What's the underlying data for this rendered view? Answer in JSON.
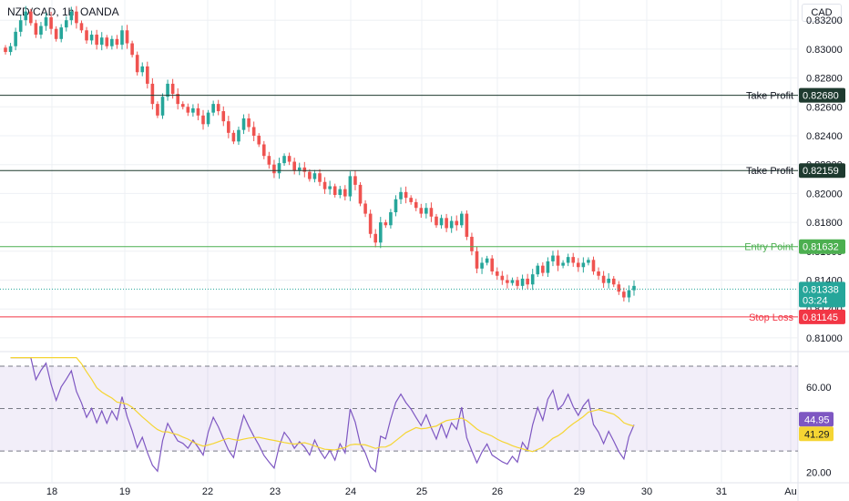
{
  "header": {
    "symbol": "NZD/CAD, 1h, OANDA",
    "currency": "CAD"
  },
  "colors": {
    "up": "#26a69a",
    "down": "#ef5350",
    "take_profit": "#1e3a2f",
    "entry": "#4caf50",
    "stop": "#f23645",
    "rsi": "#7e57c2",
    "rsi_ma": "#f5d533",
    "last_price": "#26a69a"
  },
  "price_scale": {
    "ticks": [
      "0.83200",
      "0.83000",
      "0.82800",
      "0.82600",
      "0.82400",
      "0.82200",
      "0.82000",
      "0.81800",
      "0.81600",
      "0.81400",
      "0.81200",
      "0.81000"
    ]
  },
  "rsi_scale": {
    "ticks": [
      "60.00",
      "20.00"
    ]
  },
  "time_axis": {
    "labels": [
      "18",
      "19",
      "22",
      "23",
      "24",
      "25",
      "26",
      "29",
      "30",
      "31",
      "Au"
    ]
  },
  "levels": [
    {
      "label": "Take Profit",
      "value": "0.82680",
      "kind": "take_profit"
    },
    {
      "label": "Take Profit",
      "value": "0.82159",
      "kind": "take_profit"
    },
    {
      "label": "Entry Point",
      "value": "0.81632",
      "kind": "entry"
    },
    {
      "label": "Stop Loss",
      "value": "0.81145",
      "kind": "stop"
    }
  ],
  "last_price": {
    "value": "0.81338",
    "countdown": "03:24"
  },
  "rsi_tags": {
    "rsi": "44.95",
    "ma": "41.29"
  },
  "chart_data": [
    {
      "type": "candlestick",
      "title": "NZD/CAD, 1h, OANDA",
      "ylim": [
        0.8093,
        0.8334
      ],
      "x_tick_labels": [
        "18",
        "19",
        "22",
        "23",
        "24",
        "25",
        "26",
        "29",
        "30",
        "31",
        "Au"
      ],
      "close": [
        0.8298,
        0.8302,
        0.8312,
        0.832,
        0.8326,
        0.8318,
        0.831,
        0.8316,
        0.8322,
        0.8314,
        0.8307,
        0.8315,
        0.832,
        0.8326,
        0.8318,
        0.8313,
        0.8306,
        0.831,
        0.8303,
        0.8308,
        0.8302,
        0.8307,
        0.8303,
        0.8313,
        0.8304,
        0.8296,
        0.8284,
        0.8288,
        0.8276,
        0.8262,
        0.8254,
        0.8267,
        0.8276,
        0.8269,
        0.8262,
        0.826,
        0.8256,
        0.8259,
        0.8254,
        0.8248,
        0.8256,
        0.8262,
        0.8257,
        0.825,
        0.8242,
        0.8236,
        0.8244,
        0.8252,
        0.8246,
        0.824,
        0.8234,
        0.8226,
        0.822,
        0.8214,
        0.8221,
        0.8226,
        0.8222,
        0.8216,
        0.8218,
        0.8215,
        0.821,
        0.8214,
        0.8208,
        0.8203,
        0.8205,
        0.8199,
        0.8203,
        0.8198,
        0.8212,
        0.8206,
        0.8193,
        0.8186,
        0.8172,
        0.8166,
        0.818,
        0.8178,
        0.8187,
        0.8196,
        0.8201,
        0.8197,
        0.8194,
        0.819,
        0.8186,
        0.819,
        0.8184,
        0.8178,
        0.8183,
        0.8176,
        0.8181,
        0.8178,
        0.8186,
        0.817,
        0.816,
        0.8148,
        0.8152,
        0.8155,
        0.8146,
        0.8143,
        0.814,
        0.8138,
        0.814,
        0.8136,
        0.8141,
        0.8137,
        0.8144,
        0.815,
        0.8145,
        0.8153,
        0.8157,
        0.815,
        0.8152,
        0.8156,
        0.8152,
        0.8149,
        0.8152,
        0.8154,
        0.8146,
        0.8143,
        0.8138,
        0.8141,
        0.8137,
        0.8132,
        0.8128,
        0.8133,
        0.8136
      ],
      "rsi_panel": {
        "ylim": [
          15,
          76
        ],
        "bands": [
          30,
          50,
          70
        ],
        "ticks": [
          60,
          20
        ]
      }
    }
  ]
}
